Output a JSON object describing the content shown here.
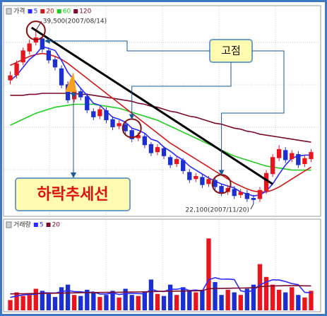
{
  "chart_data": [
    {
      "type": "candlestick",
      "name": "가격",
      "categories": [
        null,
        null,
        null,
        null,
        null,
        null,
        null,
        null,
        null,
        null,
        null,
        null,
        null,
        null,
        null,
        null,
        null,
        null,
        null,
        null,
        null,
        null,
        null,
        null,
        null,
        null,
        null,
        null,
        null,
        null,
        null,
        null,
        null,
        null,
        null,
        null,
        null,
        null,
        null,
        null,
        null,
        null,
        null,
        null,
        null,
        null,
        null,
        null
      ],
      "open": [
        34500,
        35000,
        36300,
        37400,
        38300,
        38700,
        37500,
        36600,
        35700,
        34100,
        32600,
        33400,
        32900,
        31400,
        30900,
        31500,
        30600,
        29900,
        30100,
        29500,
        28700,
        28900,
        28100,
        27300,
        27700,
        26800,
        26100,
        26500,
        25300,
        24600,
        24800,
        24100,
        24500,
        23900,
        23300,
        23600,
        23000,
        23200,
        22700,
        22600,
        23400,
        25100,
        26700,
        27500,
        26600,
        27100,
        26100,
        26600
      ],
      "high": [
        35400,
        36500,
        37800,
        38600,
        39500,
        38900,
        37800,
        36900,
        36000,
        34400,
        33900,
        33700,
        33200,
        31700,
        31900,
        31800,
        30900,
        30500,
        30400,
        29700,
        29300,
        29200,
        28300,
        28100,
        27900,
        27000,
        26900,
        26700,
        25600,
        25200,
        25100,
        24900,
        24700,
        24100,
        24000,
        23900,
        23600,
        23500,
        23000,
        23800,
        25500,
        27100,
        28000,
        27800,
        27500,
        27400,
        27000,
        27600
      ],
      "low": [
        34100,
        34700,
        36000,
        37100,
        38000,
        37300,
        36200,
        35500,
        33700,
        32200,
        32300,
        32500,
        31200,
        30500,
        30600,
        30200,
        29500,
        29600,
        29100,
        28300,
        28400,
        27700,
        26900,
        27000,
        26600,
        25700,
        25800,
        25100,
        24200,
        24300,
        23700,
        23800,
        23500,
        22900,
        23000,
        22600,
        22700,
        22300,
        22100,
        22300,
        23100,
        24800,
        26400,
        26200,
        26300,
        25700,
        25800,
        26300
      ],
      "close": [
        35000,
        36200,
        37500,
        38200,
        38800,
        37600,
        36500,
        35800,
        34000,
        32500,
        33500,
        32800,
        31500,
        30800,
        31600,
        30500,
        29800,
        30200,
        29400,
        28600,
        29000,
        28000,
        27200,
        27800,
        26900,
        26000,
        26600,
        25400,
        24500,
        24900,
        24000,
        24600,
        23800,
        23200,
        23700,
        22900,
        23300,
        22600,
        22500,
        23500,
        25200,
        26800,
        27600,
        26500,
        27200,
        26000,
        26700,
        27300
      ],
      "up_color": "#e8141e",
      "down_color": "#1c2fd0",
      "series": [
        {
          "name": "5",
          "color": "#2b2bff",
          "values": [
            34500,
            35000,
            35800,
            36600,
            37100,
            37900,
            37700,
            37500,
            36500,
            35300,
            34500,
            33700,
            33000,
            32200,
            32000,
            31400,
            30800,
            30600,
            30300,
            29700,
            29500,
            29200,
            28600,
            28400,
            27800,
            27400,
            26900,
            26500,
            25900,
            25500,
            25100,
            24700,
            24400,
            24100,
            23900,
            23700,
            23300,
            23100,
            22900,
            23000,
            23400,
            24100,
            25100,
            26000,
            26700,
            26900,
            27000,
            27000
          ]
        },
        {
          "name": "20",
          "color": "#d01818",
          "values": [
            36000,
            36300,
            36600,
            36900,
            37100,
            37200,
            37100,
            36900,
            36600,
            36200,
            35700,
            35200,
            34700,
            34200,
            33700,
            33200,
            32700,
            32200,
            31700,
            31200,
            30700,
            30200,
            29700,
            29200,
            28700,
            28200,
            27800,
            27400,
            27000,
            26600,
            26200,
            25800,
            25400,
            25000,
            24600,
            24200,
            23900,
            23600,
            23400,
            23300,
            23300,
            23500,
            23800,
            24200,
            24600,
            25000,
            25400,
            25800
          ]
        },
        {
          "name": "60",
          "color": "#22cc22",
          "values": [
            30000,
            30300,
            30600,
            30900,
            31200,
            31400,
            31600,
            31800,
            31900,
            32000,
            32100,
            32100,
            32100,
            32100,
            32000,
            31900,
            31800,
            31700,
            31500,
            31300,
            31100,
            30900,
            30700,
            30500,
            30200,
            29900,
            29600,
            29300,
            29000,
            28700,
            28400,
            28100,
            27800,
            27500,
            27200,
            26900,
            26700,
            26500,
            26300,
            26100,
            25900,
            25800,
            25700,
            25600,
            25500,
            25500,
            25500,
            25500
          ]
        },
        {
          "name": "120",
          "color": "#7a0a28",
          "values": [
            33000,
            33000,
            33000,
            33100,
            33100,
            33200,
            33200,
            33200,
            33200,
            33200,
            33200,
            33100,
            33100,
            33000,
            32900,
            32800,
            32700,
            32600,
            32500,
            32400,
            32200,
            32100,
            31900,
            31800,
            31600,
            31400,
            31300,
            31100,
            30900,
            30800,
            30600,
            30400,
            30200,
            30100,
            29900,
            29700,
            29600,
            29400,
            29300,
            29100,
            29000,
            28900,
            28800,
            28700,
            28600,
            28500,
            28400,
            28300
          ]
        }
      ],
      "ylim": [
        21000,
        41000
      ],
      "annotations": [
        "39,500(2007/08/14)",
        "고점",
        "하락추세선",
        "22,100(2007/11/20)"
      ]
    },
    {
      "type": "bar",
      "name": "거래량",
      "categories": [
        null,
        null,
        null,
        null,
        null,
        null,
        null,
        null,
        null,
        null,
        null,
        null,
        null,
        null,
        null,
        null,
        null,
        null,
        null,
        null,
        null,
        null,
        null,
        null,
        null,
        null,
        null,
        null,
        null,
        null,
        null,
        null,
        null,
        null,
        null,
        null,
        null,
        null,
        null,
        null,
        null,
        null,
        null,
        null,
        null,
        null,
        null,
        null
      ],
      "values": [
        200,
        350,
        280,
        300,
        420,
        380,
        320,
        260,
        450,
        500,
        300,
        280,
        400,
        350,
        260,
        300,
        380,
        250,
        420,
        300,
        280,
        350,
        600,
        320,
        280,
        500,
        300,
        450,
        380,
        350,
        400,
        1400,
        550,
        300,
        400,
        350,
        300,
        420,
        500,
        900,
        650,
        500,
        400,
        350,
        450,
        300,
        250,
        380
      ],
      "series": [
        {
          "name": "5",
          "color": "#2b2bff",
          "values": [
            250,
            280,
            300,
            310,
            310,
            346,
            340,
            336,
            366,
            386,
            366,
            362,
            346,
            358,
            318,
            318,
            338,
            308,
            322,
            330,
            326,
            320,
            410,
            374,
            366,
            410,
            410,
            430,
            386,
            396,
            376,
            596,
            636,
            606,
            610,
            600,
            381,
            353,
            394,
            494,
            554,
            594,
            590,
            560,
            520,
            500,
            350,
            346
          ]
        },
        {
          "name": "20",
          "color": "#7a0a28",
          "values": [
            320,
            322,
            324,
            326,
            328,
            330,
            332,
            334,
            336,
            338,
            340,
            342,
            344,
            346,
            348,
            350,
            350,
            352,
            354,
            356,
            358,
            360,
            365,
            368,
            370,
            372,
            374,
            376,
            378,
            380,
            385,
            420,
            425,
            428,
            430,
            432,
            434,
            436,
            440,
            460,
            470,
            475,
            478,
            480,
            482,
            480,
            478,
            476
          ]
        }
      ],
      "ylim": [
        0,
        1500
      ]
    }
  ]
}
